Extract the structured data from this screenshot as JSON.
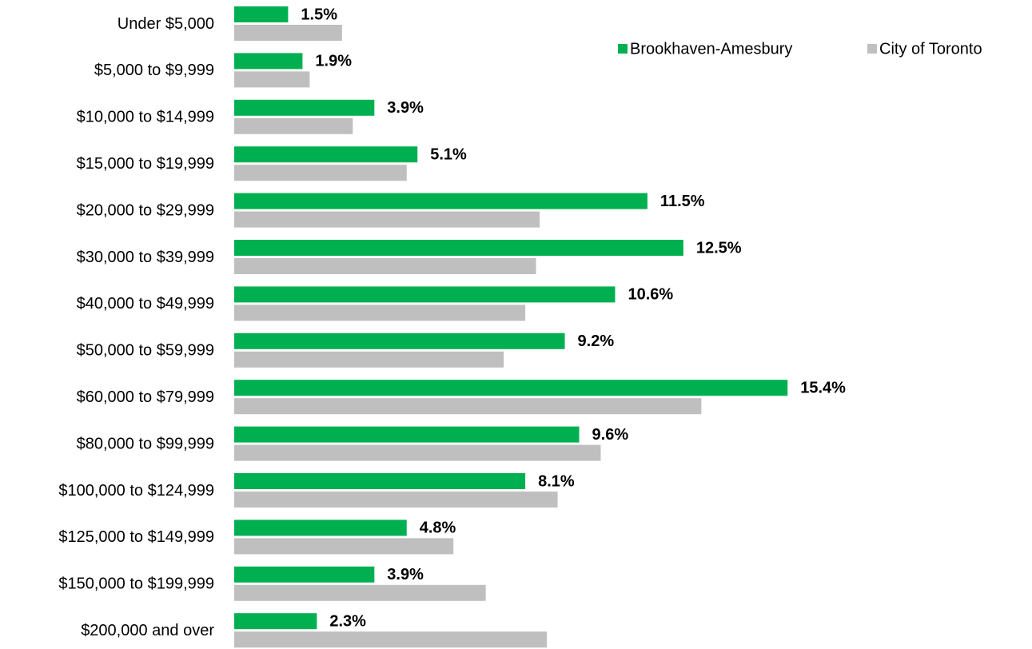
{
  "chart_data": {
    "type": "hbar",
    "categories": [
      "Under $5,000",
      "$5,000 to $9,999",
      "$10,000 to $14,999",
      "$15,000 to $19,999",
      "$20,000 to $29,999",
      "$30,000 to $39,999",
      "$40,000 to $49,999",
      "$50,000 to $59,999",
      "$60,000 to $79,999",
      "$80,000 to $99,999",
      "$100,000 to $124,999",
      "$125,000 to $149,999",
      "$150,000 to $199,999",
      "$200,000 and over"
    ],
    "series": [
      {
        "name": "Brookhaven-Amesbury",
        "color": "#00b050",
        "values": [
          1.5,
          1.9,
          3.9,
          5.1,
          11.5,
          12.5,
          10.6,
          9.2,
          15.4,
          9.6,
          8.1,
          4.8,
          3.9,
          2.3
        ],
        "value_labels": [
          "1.5%",
          "1.9%",
          "3.9%",
          "5.1%",
          "11.5%",
          "12.5%",
          "10.6%",
          "9.2%",
          "15.4%",
          "9.6%",
          "8.1%",
          "4.8%",
          "3.9%",
          "2.3%"
        ],
        "label_color": "#1f8a3e"
      },
      {
        "name": "City of Toronto",
        "color": "#bfbfbf",
        "values": [
          3.0,
          2.1,
          3.3,
          4.8,
          8.5,
          8.4,
          8.1,
          7.5,
          13.0,
          10.2,
          9.0,
          6.1,
          7.0,
          8.7
        ]
      }
    ],
    "xlim": [
      0,
      20
    ],
    "legend": "top-right"
  }
}
